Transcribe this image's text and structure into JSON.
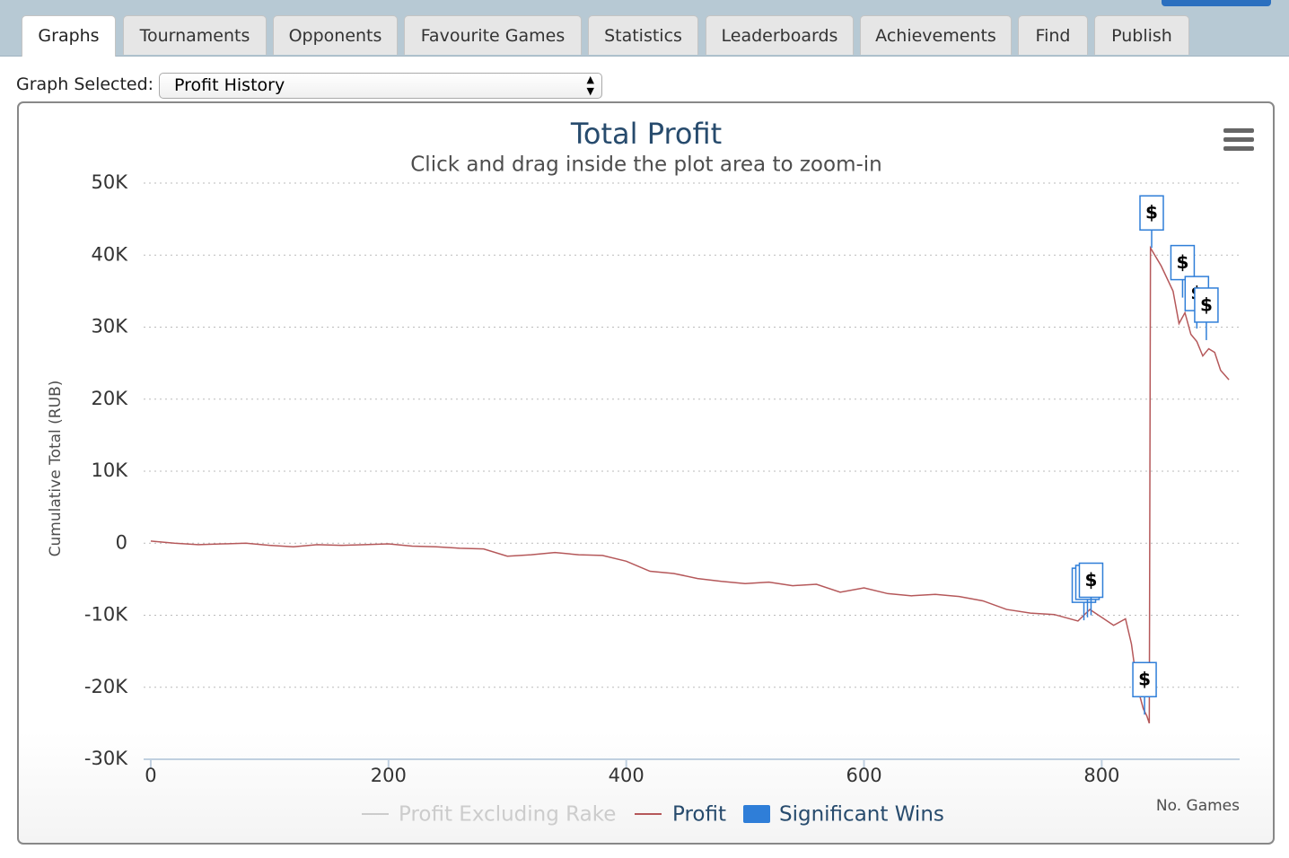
{
  "tabs": [
    "Graphs",
    "Tournaments",
    "Opponents",
    "Favourite Games",
    "Statistics",
    "Leaderboards",
    "Achievements",
    "Find",
    "Publish"
  ],
  "active_tab": 0,
  "graph_selector": {
    "label": "Graph Selected:",
    "value": "Profit History"
  },
  "chart_data": {
    "type": "line",
    "title": "Total Profit",
    "subtitle": "Click and drag inside the plot area to zoom-in",
    "x_label": "No. Games",
    "y_label": "Cumulative Total (RUB)",
    "xlim": [
      -6,
      916
    ],
    "xticks": [
      0,
      200,
      400,
      600,
      800
    ],
    "ylim": [
      -30000,
      50000
    ],
    "yticks": [
      {
        "value": -30000,
        "label": "-30K"
      },
      {
        "value": -20000,
        "label": "-20K"
      },
      {
        "value": -10000,
        "label": "-10K"
      },
      0,
      {
        "value": 10000,
        "label": "10K"
      },
      {
        "value": 20000,
        "label": "20K"
      },
      {
        "value": 30000,
        "label": "30K"
      },
      {
        "value": 40000,
        "label": "40K"
      },
      {
        "value": 50000,
        "label": "50K"
      }
    ],
    "grid": true,
    "series": [
      {
        "name": "Profit Excluding Rake",
        "color": "#cccccc",
        "visible": false
      },
      {
        "name": "Profit",
        "color": "#b5585a",
        "x": [
          0,
          20,
          40,
          60,
          80,
          100,
          120,
          140,
          160,
          180,
          200,
          220,
          240,
          260,
          280,
          300,
          320,
          340,
          360,
          380,
          400,
          420,
          440,
          460,
          480,
          500,
          520,
          540,
          560,
          580,
          600,
          620,
          640,
          660,
          680,
          700,
          720,
          740,
          760,
          780,
          790,
          800,
          810,
          820,
          825,
          830,
          835,
          838,
          840,
          841,
          850,
          860,
          865,
          870,
          875,
          880,
          885,
          890,
          895,
          900,
          907
        ],
        "values": [
          300,
          0,
          -200,
          -100,
          0,
          -300,
          -500,
          -200,
          -300,
          -200,
          -100,
          -400,
          -500,
          -700,
          -800,
          -1800,
          -1600,
          -1300,
          -1600,
          -1700,
          -2500,
          -3900,
          -4200,
          -4900,
          -5300,
          -5600,
          -5400,
          -5900,
          -5700,
          -6800,
          -6200,
          -7000,
          -7300,
          -7100,
          -7400,
          -8000,
          -9200,
          -9700,
          -9900,
          -10800,
          -9200,
          -10300,
          -11400,
          -10500,
          -14000,
          -20000,
          -23000,
          -24000,
          -25000,
          41000,
          38500,
          35000,
          30500,
          32000,
          29000,
          28000,
          26000,
          27000,
          26500,
          24000,
          22700
        ]
      },
      {
        "name": "Significant Wins",
        "type": "flags",
        "color": "#2f7ed8",
        "title": "$",
        "x": [
          785,
          788,
          791,
          836,
          842,
          868,
          880,
          888
        ],
        "values": [
          -10700,
          -10300,
          -10000,
          -23800,
          41000,
          34100,
          29800,
          28200
        ]
      }
    ],
    "legend": "bottom"
  }
}
